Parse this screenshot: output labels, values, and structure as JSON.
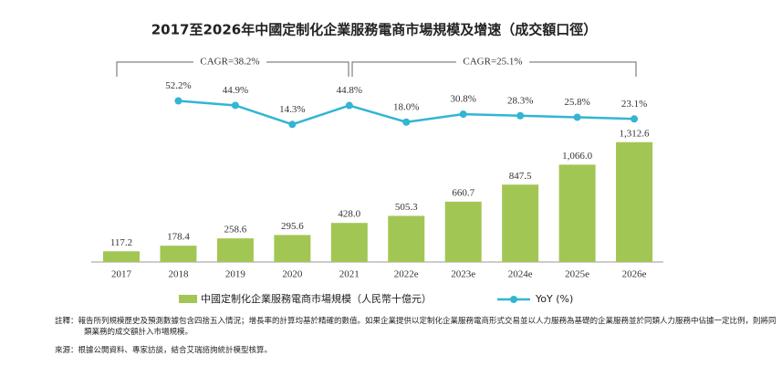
{
  "chart_data": {
    "type": "bar-line",
    "title": "2017至2026年中國定制化企業服務電商市場規模及增速（成交額口徑）",
    "categories": [
      "2017",
      "2018",
      "2019",
      "2020",
      "2021",
      "2022e",
      "2023e",
      "2024e",
      "2025e",
      "2026e"
    ],
    "series": [
      {
        "name": "中國定制化企業服務電商市場規模（人民幣十億元）",
        "type": "bar",
        "color": "#a2c654",
        "values": [
          117.2,
          178.4,
          258.6,
          295.6,
          428.0,
          505.3,
          660.7,
          847.5,
          1066.0,
          1312.6
        ],
        "value_labels": [
          "117.2",
          "178.4",
          "258.6",
          "295.6",
          "428.0",
          "505.3",
          "660.7",
          "847.5",
          "1,066.0",
          "1,312.6"
        ]
      },
      {
        "name": "YoY (%)",
        "type": "line",
        "color": "#33b5d3",
        "values": [
          null,
          52.2,
          44.9,
          14.3,
          44.8,
          18.0,
          30.8,
          28.3,
          25.8,
          23.1
        ],
        "value_labels": [
          null,
          "52.2%",
          "44.9%",
          "14.3%",
          "44.8%",
          "18.0%",
          "30.8%",
          "28.3%",
          "25.8%",
          "23.1%"
        ]
      }
    ],
    "annotations": [
      "CAGR=38.2%",
      "CAGR=25.1%"
    ]
  },
  "footnotes": [
    "註釋：報告所列規模歷史及預測數據包含四捨五入情況；增長率的計算均基於精確的數值。如果企業提供以定制化企業服務電商形式交易並以人力服務為基礎的企業服務並於同類人力服務中佔據一定比例，則將同類業務的成交額計入市場規模。",
    "來源：根據公開資料、專家訪談，結合艾瑞諮詢統計模型核算。"
  ]
}
